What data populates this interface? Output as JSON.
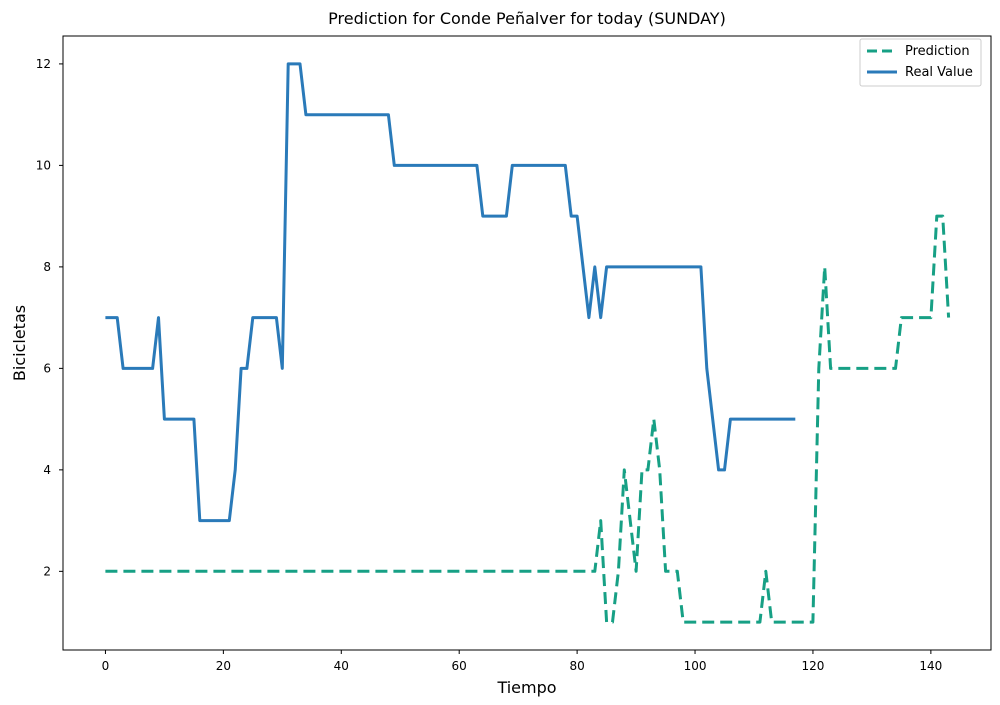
{
  "chart_data": {
    "type": "line",
    "title": "Prediction for Conde Peñalver for today (SUNDAY)",
    "xlabel": "Tiempo",
    "ylabel": "Bicicletas",
    "xlim": [
      -7.2,
      150.2
    ],
    "ylim": [
      0.45,
      12.55
    ],
    "xticks": [
      0,
      20,
      40,
      60,
      80,
      100,
      120,
      140
    ],
    "yticks": [
      2,
      4,
      6,
      8,
      10,
      12
    ],
    "grid": false,
    "legend_position": "top-right",
    "series": [
      {
        "name": "Prediction",
        "color": "#17a085",
        "style": "dashed",
        "points": [
          [
            0,
            2
          ],
          [
            83,
            2
          ],
          [
            84,
            3
          ],
          [
            85,
            1
          ],
          [
            86,
            1
          ],
          [
            87,
            2
          ],
          [
            88,
            4
          ],
          [
            89,
            3
          ],
          [
            90,
            2
          ],
          [
            91,
            4
          ],
          [
            92,
            4
          ],
          [
            93,
            5
          ],
          [
            94,
            4
          ],
          [
            95,
            2
          ],
          [
            97,
            2
          ],
          [
            98,
            1
          ],
          [
            111,
            1
          ],
          [
            112,
            2
          ],
          [
            113,
            1
          ],
          [
            120,
            1
          ],
          [
            121,
            6
          ],
          [
            122,
            8
          ],
          [
            123,
            6
          ],
          [
            134,
            6
          ],
          [
            135,
            7
          ],
          [
            140,
            7
          ],
          [
            141,
            9
          ],
          [
            142,
            9
          ],
          [
            143,
            7
          ]
        ]
      },
      {
        "name": "Real Value",
        "color": "#2a7ab9",
        "style": "solid",
        "points": [
          [
            0,
            7
          ],
          [
            2,
            7
          ],
          [
            3,
            6
          ],
          [
            8,
            6
          ],
          [
            9,
            7
          ],
          [
            10,
            5
          ],
          [
            15,
            5
          ],
          [
            16,
            3
          ],
          [
            21,
            3
          ],
          [
            22,
            4
          ],
          [
            23,
            6
          ],
          [
            24,
            6
          ],
          [
            25,
            7
          ],
          [
            29,
            7
          ],
          [
            30,
            6
          ],
          [
            31,
            12
          ],
          [
            33,
            12
          ],
          [
            34,
            11
          ],
          [
            48,
            11
          ],
          [
            49,
            10
          ],
          [
            63,
            10
          ],
          [
            64,
            9
          ],
          [
            68,
            9
          ],
          [
            69,
            10
          ],
          [
            78,
            10
          ],
          [
            79,
            9
          ],
          [
            80,
            9
          ],
          [
            81,
            8
          ],
          [
            82,
            7
          ],
          [
            83,
            8
          ],
          [
            84,
            7
          ],
          [
            85,
            8
          ],
          [
            101,
            8
          ],
          [
            102,
            6
          ],
          [
            104,
            4
          ],
          [
            105,
            4
          ],
          [
            106,
            5
          ],
          [
            117,
            5
          ]
        ]
      }
    ]
  }
}
